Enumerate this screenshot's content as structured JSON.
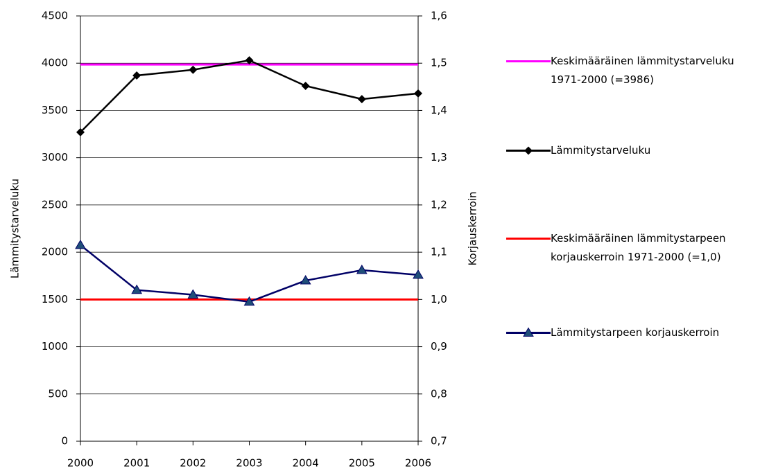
{
  "chart_data": {
    "type": "line",
    "categories": [
      "2000",
      "2001",
      "2002",
      "2003",
      "2004",
      "2005",
      "2006"
    ],
    "ylabel": "Lämmitystarveluku",
    "y2label": "Korjauskerroin",
    "ylim": [
      0,
      4500
    ],
    "yticks": [
      0,
      500,
      1000,
      1500,
      2000,
      2500,
      3000,
      3500,
      4000,
      4500
    ],
    "y2lim": [
      0.7,
      1.6
    ],
    "y2ticks": [
      {
        "value": 0.7,
        "label": "0,7"
      },
      {
        "value": 0.8,
        "label": "0,8"
      },
      {
        "value": 0.9,
        "label": "0,9"
      },
      {
        "value": 1.0,
        "label": "1,0"
      },
      {
        "value": 1.1,
        "label": "1,1"
      },
      {
        "value": 1.2,
        "label": "1,2"
      },
      {
        "value": 1.3,
        "label": "1,3"
      },
      {
        "value": 1.4,
        "label": "1,4"
      },
      {
        "value": 1.5,
        "label": "1,5"
      },
      {
        "value": 1.6,
        "label": "1,6"
      }
    ],
    "grid": true,
    "legend": "right",
    "series": [
      {
        "name": "Keskimääräinen lämmitystarveluku 1971-2000 (=3986)",
        "color": "#ff00ff",
        "values": [
          3986,
          3986,
          3986,
          3986,
          3986,
          3986,
          3986
        ]
      },
      {
        "name": "Lämmitystarveluku",
        "color": "#000000",
        "marker": "diamond",
        "values": [
          3270,
          3870,
          3930,
          4030,
          3760,
          3620,
          3680
        ]
      },
      {
        "name": "Keskimääräinen lämmitystarpeen korjauskerroin 1971-2000 (=1,0)",
        "color": "#ff0000",
        "axis": "y2",
        "values": [
          1.0,
          1.0,
          1.0,
          1.0,
          1.0,
          1.0,
          1.0
        ]
      },
      {
        "name": "Lämmitystarpeen korjauskerroin",
        "color": "#000066",
        "marker": "triangle",
        "axis": "y2",
        "values": [
          1.115,
          1.02,
          1.01,
          0.995,
          1.04,
          1.062,
          1.052
        ]
      }
    ]
  }
}
